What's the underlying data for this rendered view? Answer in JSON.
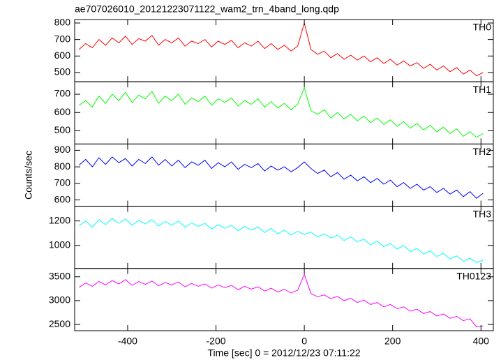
{
  "chart_data": {
    "type": "line",
    "title": "ae707026010_20121223071122_wam2_trn_4band_long.qdp",
    "xlabel": "Time [sec] 0 = 2012/12/23 07:11:22",
    "ylabel": "Counts/sec",
    "xlim": [
      -520,
      428
    ],
    "xticks": [
      -400,
      -200,
      0,
      200,
      400
    ],
    "x": [
      -510,
      -495,
      -480,
      -465,
      -450,
      -435,
      -420,
      -405,
      -390,
      -375,
      -360,
      -345,
      -330,
      -315,
      -300,
      -285,
      -270,
      -255,
      -240,
      -225,
      -210,
      -195,
      -180,
      -165,
      -150,
      -135,
      -120,
      -105,
      -90,
      -75,
      -60,
      -45,
      -30,
      -15,
      0,
      15,
      30,
      45,
      60,
      75,
      90,
      105,
      120,
      135,
      150,
      165,
      180,
      195,
      210,
      225,
      240,
      255,
      270,
      285,
      300,
      315,
      330,
      345,
      360,
      375,
      390,
      405
    ],
    "series": [
      {
        "name": "TH0",
        "color": "#ff0000",
        "ylim": [
          444,
          821
        ],
        "yticks": [
          500,
          600,
          700,
          800
        ],
        "values": [
          640,
          675,
          650,
          700,
          665,
          710,
          680,
          720,
          670,
          705,
          690,
          725,
          665,
          700,
          680,
          710,
          660,
          690,
          675,
          700,
          655,
          690,
          670,
          695,
          650,
          680,
          660,
          690,
          645,
          675,
          640,
          665,
          630,
          660,
          800,
          640,
          610,
          630,
          590,
          615,
          580,
          605,
          575,
          600,
          565,
          590,
          555,
          580,
          545,
          570,
          540,
          560,
          525,
          550,
          515,
          540,
          505,
          530,
          490,
          515,
          480,
          500
        ]
      },
      {
        "name": "TH1",
        "color": "#00ff00",
        "ylim": [
          428,
          768
        ],
        "yticks": [
          500,
          600,
          700
        ],
        "values": [
          640,
          665,
          630,
          690,
          650,
          700,
          665,
          710,
          655,
          695,
          675,
          715,
          650,
          690,
          665,
          700,
          645,
          680,
          660,
          690,
          640,
          675,
          655,
          680,
          635,
          665,
          645,
          675,
          630,
          660,
          625,
          650,
          615,
          645,
          735,
          610,
          590,
          615,
          570,
          600,
          565,
          590,
          555,
          580,
          545,
          570,
          535,
          560,
          525,
          550,
          515,
          540,
          505,
          530,
          495,
          520,
          485,
          510,
          470,
          495,
          465,
          485
        ]
      },
      {
        "name": "TH2",
        "color": "#0000ff",
        "ylim": [
          562,
          938
        ],
        "yticks": [
          600,
          700,
          800,
          900
        ],
        "values": [
          810,
          845,
          800,
          855,
          815,
          860,
          825,
          850,
          805,
          845,
          820,
          860,
          810,
          845,
          805,
          840,
          795,
          830,
          810,
          840,
          790,
          825,
          800,
          830,
          785,
          815,
          795,
          820,
          775,
          805,
          780,
          800,
          770,
          795,
          830,
          790,
          760,
          780,
          740,
          765,
          725,
          750,
          715,
          740,
          705,
          730,
          695,
          720,
          680,
          705,
          670,
          695,
          660,
          680,
          645,
          670,
          635,
          660,
          620,
          650,
          610,
          640
        ]
      },
      {
        "name": "TH3",
        "color": "#00ffff",
        "ylim": [
          812,
          1320
        ],
        "yticks": [
          1000,
          1200
        ],
        "values": [
          1160,
          1200,
          1150,
          1210,
          1170,
          1220,
          1180,
          1215,
          1165,
          1205,
          1175,
          1210,
          1160,
          1195,
          1165,
          1200,
          1150,
          1185,
          1155,
          1180,
          1135,
          1170,
          1140,
          1165,
          1120,
          1155,
          1125,
          1150,
          1105,
          1140,
          1095,
          1125,
          1085,
          1115,
          1090,
          1110,
          1070,
          1095,
          1060,
          1085,
          1040,
          1070,
          1030,
          1050,
          1005,
          1035,
          990,
          1015,
          970,
          1000,
          950,
          975,
          930,
          955,
          910,
          935,
          890,
          915,
          870,
          895,
          860,
          880
        ]
      },
      {
        "name": "TH0123",
        "color": "#ff00ff",
        "ylim": [
          2370,
          3674
        ],
        "yticks": [
          2500,
          3000,
          3500
        ],
        "values": [
          3280,
          3370,
          3300,
          3400,
          3330,
          3420,
          3350,
          3440,
          3320,
          3400,
          3340,
          3410,
          3310,
          3380,
          3330,
          3390,
          3290,
          3360,
          3300,
          3350,
          3260,
          3330,
          3270,
          3320,
          3230,
          3300,
          3240,
          3290,
          3200,
          3260,
          3180,
          3240,
          3160,
          3220,
          3550,
          3150,
          3080,
          3120,
          3040,
          3090,
          3000,
          3050,
          2960,
          3010,
          2920,
          2960,
          2870,
          2920,
          2830,
          2870,
          2780,
          2820,
          2730,
          2770,
          2680,
          2720,
          2630,
          2670,
          2580,
          2620,
          2450,
          2470
        ]
      }
    ]
  }
}
